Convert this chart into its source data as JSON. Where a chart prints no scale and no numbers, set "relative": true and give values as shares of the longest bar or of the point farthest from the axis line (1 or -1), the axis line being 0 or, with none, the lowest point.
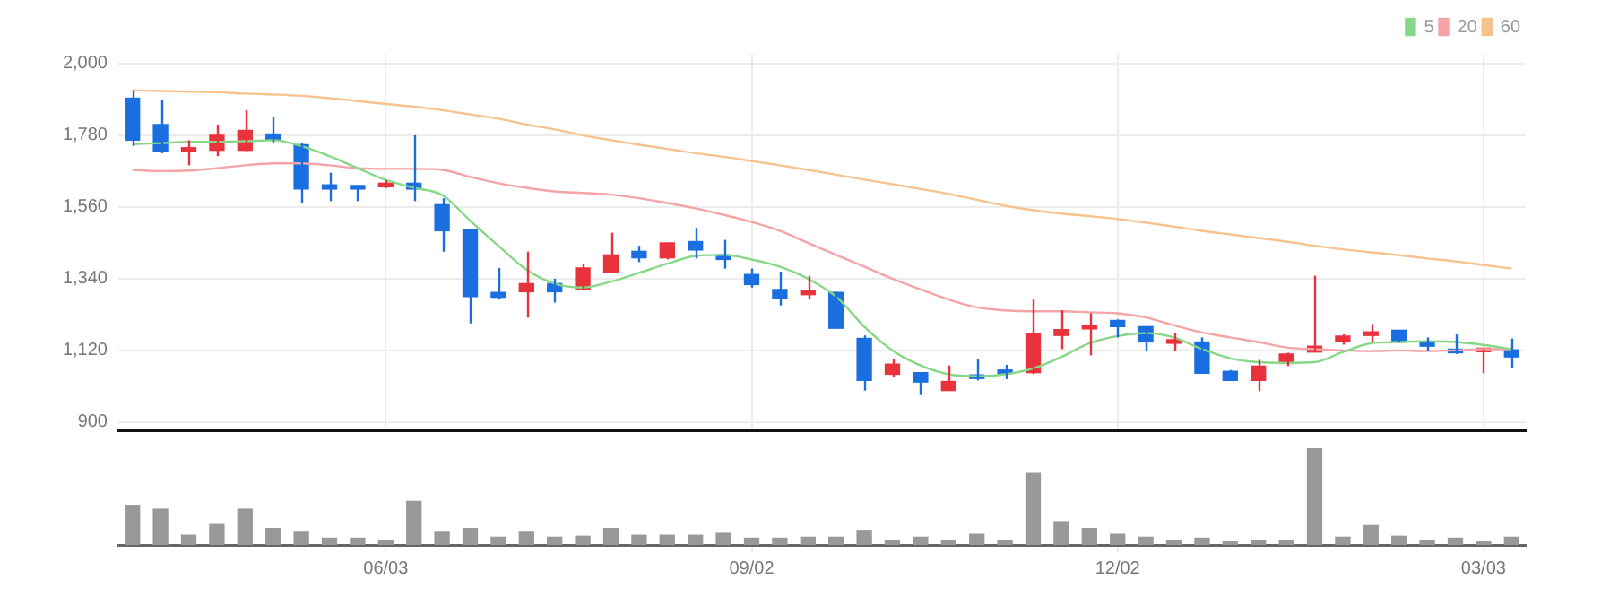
{
  "chart_data": [
    {
      "type": "candlestick",
      "categories": [
        null,
        null,
        null,
        null,
        null,
        null,
        null,
        null,
        null,
        null,
        null,
        null,
        null,
        null,
        null,
        null,
        null,
        null,
        null,
        null,
        null,
        null,
        null,
        null,
        null,
        null,
        null,
        null,
        null,
        null,
        null,
        null,
        null,
        null,
        null,
        null,
        null,
        null,
        null,
        null,
        null,
        null,
        null,
        null,
        null,
        null,
        null,
        null,
        null,
        null
      ],
      "ohlc": [
        [
          1894,
          1918,
          1747,
          1765
        ],
        [
          1813,
          1890,
          1725,
          1731
        ],
        [
          1731,
          1765,
          1688,
          1738
        ],
        [
          1734,
          1813,
          1716,
          1780
        ],
        [
          1734,
          1857,
          1731,
          1795
        ],
        [
          1784,
          1835,
          1756,
          1765
        ],
        [
          1751,
          1758,
          1573,
          1615
        ],
        [
          1628,
          1665,
          1578,
          1615
        ],
        [
          1626,
          1626,
          1578,
          1615
        ],
        [
          1622,
          1642,
          1618,
          1633
        ],
        [
          1633,
          1780,
          1578,
          1615
        ],
        [
          1567,
          1587,
          1423,
          1487
        ],
        [
          1492,
          1492,
          1203,
          1285
        ],
        [
          1298,
          1373,
          1276,
          1283
        ],
        [
          1300,
          1423,
          1221,
          1325
        ],
        [
          1325,
          1340,
          1267,
          1300
        ],
        [
          1307,
          1386,
          1304,
          1373
        ],
        [
          1358,
          1481,
          1358,
          1413
        ],
        [
          1424,
          1441,
          1391,
          1404
        ],
        [
          1404,
          1450,
          1399,
          1450
        ],
        [
          1454,
          1496,
          1402,
          1428
        ],
        [
          1413,
          1459,
          1371,
          1399
        ],
        [
          1353,
          1371,
          1313,
          1322
        ],
        [
          1307,
          1362,
          1258,
          1280
        ],
        [
          1291,
          1349,
          1276,
          1300
        ],
        [
          1298,
          1300,
          1188,
          1188
        ],
        [
          1157,
          1166,
          997,
          1028
        ],
        [
          1047,
          1093,
          1038,
          1078
        ],
        [
          1052,
          1052,
          983,
          1023
        ],
        [
          997,
          1074,
          997,
          1025
        ],
        [
          1043,
          1093,
          1028,
          1034
        ],
        [
          1058,
          1076,
          1032,
          1049
        ],
        [
          1052,
          1276,
          1047,
          1171
        ],
        [
          1166,
          1243,
          1124,
          1184
        ],
        [
          1186,
          1234,
          1105,
          1193
        ],
        [
          1212,
          1215,
          1160,
          1193
        ],
        [
          1193,
          1193,
          1120,
          1146
        ],
        [
          1142,
          1175,
          1120,
          1151
        ],
        [
          1146,
          1160,
          1050,
          1050
        ],
        [
          1056,
          1060,
          1028,
          1028
        ],
        [
          1028,
          1091,
          995,
          1072
        ],
        [
          1080,
          1113,
          1072,
          1109
        ],
        [
          1115,
          1349,
          1115,
          1133
        ],
        [
          1149,
          1169,
          1138,
          1164
        ],
        [
          1166,
          1201,
          1146,
          1175
        ],
        [
          1182,
          1182,
          1146,
          1146
        ],
        [
          1142,
          1160,
          1120,
          1133
        ],
        [
          1124,
          1169,
          1109,
          1113
        ],
        [
          1116,
          1124,
          1050,
          1124
        ],
        [
          1122,
          1157,
          1065,
          1100
        ]
      ],
      "colors": [
        "#1a6fe0",
        "#1a6fe0",
        "#e8323c",
        "#e8323c",
        "#e8323c",
        "#1a6fe0",
        "#1a6fe0",
        "#1a6fe0",
        "#1a6fe0",
        "#e8323c",
        "#1a6fe0",
        "#1a6fe0",
        "#1a6fe0",
        "#1a6fe0",
        "#e8323c",
        "#1a6fe0",
        "#e8323c",
        "#e8323c",
        "#1a6fe0",
        "#e8323c",
        "#1a6fe0",
        "#1a6fe0",
        "#1a6fe0",
        "#1a6fe0",
        "#e8323c",
        "#1a6fe0",
        "#1a6fe0",
        "#e8323c",
        "#1a6fe0",
        "#e8323c",
        "#1a6fe0",
        "#1a6fe0",
        "#e8323c",
        "#e8323c",
        "#e8323c",
        "#1a6fe0",
        "#1a6fe0",
        "#e8323c",
        "#1a6fe0",
        "#1a6fe0",
        "#e8323c",
        "#e8323c",
        "#e8323c",
        "#e8323c",
        "#e8323c",
        "#1a6fe0",
        "#1a6fe0",
        "#1a6fe0",
        "#e8323c",
        "#1a6fe0"
      ],
      "series": [
        {
          "name": "5",
          "type": "line",
          "color": "#86d886",
          "values": [
            1753,
            1756,
            1760,
            1760,
            1762,
            1765,
            1747,
            1716,
            1679,
            1643,
            1619,
            1597,
            1518,
            1441,
            1368,
            1325,
            1313,
            1331,
            1358,
            1386,
            1410,
            1413,
            1399,
            1377,
            1340,
            1285,
            1193,
            1120,
            1074,
            1047,
            1041,
            1047,
            1065,
            1100,
            1142,
            1164,
            1173,
            1160,
            1124,
            1096,
            1084,
            1082,
            1084,
            1115,
            1142,
            1146,
            1148,
            1146,
            1137,
            1124
          ]
        },
        {
          "name": "20",
          "type": "line",
          "color": "#f4a3a6",
          "values": [
            1674,
            1670,
            1672,
            1679,
            1688,
            1694,
            1694,
            1688,
            1679,
            1677,
            1677,
            1674,
            1652,
            1633,
            1619,
            1608,
            1603,
            1598,
            1587,
            1572,
            1556,
            1536,
            1514,
            1487,
            1450,
            1413,
            1377,
            1340,
            1307,
            1276,
            1252,
            1243,
            1240,
            1240,
            1237,
            1234,
            1221,
            1197,
            1175,
            1160,
            1146,
            1129,
            1124,
            1120,
            1118,
            1120,
            1118,
            1120,
            1124,
            1124
          ]
        },
        {
          "name": "60",
          "type": "line",
          "color": "#f7c28c",
          "values": [
            1918,
            1916,
            1914,
            1912,
            1908,
            1905,
            1901,
            1894,
            1885,
            1876,
            1868,
            1857,
            1844,
            1831,
            1813,
            1798,
            1780,
            1765,
            1751,
            1738,
            1725,
            1714,
            1701,
            1688,
            1674,
            1659,
            1644,
            1630,
            1615,
            1600,
            1582,
            1564,
            1550,
            1540,
            1532,
            1523,
            1512,
            1500,
            1487,
            1476,
            1465,
            1454,
            1441,
            1430,
            1421,
            1412,
            1402,
            1393,
            1382,
            1371
          ]
        }
      ],
      "ylim": [
        875,
        2030
      ],
      "yticks": [
        900,
        {
          "value": 1120,
          "label": "1,120"
        },
        {
          "value": 1340,
          "label": "1,340"
        },
        {
          "value": 1560,
          "label": "1,560"
        },
        {
          "value": 1780,
          "label": "1,780"
        },
        {
          "value": 2000,
          "label": "2,000"
        }
      ],
      "grid": true,
      "legend": "top right",
      "tick_labels": "y"
    },
    {
      "type": "bar",
      "relative": true,
      "categories": [
        null,
        null,
        null,
        null,
        null,
        null,
        null,
        null,
        null,
        "06/03",
        null,
        null,
        null,
        null,
        null,
        null,
        null,
        null,
        null,
        null,
        null,
        null,
        "09/02",
        null,
        null,
        null,
        null,
        null,
        null,
        null,
        null,
        null,
        null,
        null,
        null,
        "12/02",
        null,
        null,
        null,
        null,
        null,
        null,
        null,
        null,
        null,
        null,
        null,
        null,
        "03/03",
        null
      ],
      "values": [
        0.41,
        0.37,
        0.1,
        0.22,
        0.37,
        0.17,
        0.14,
        0.07,
        0.07,
        0.05,
        0.45,
        0.14,
        0.17,
        0.08,
        0.14,
        0.08,
        0.09,
        0.17,
        0.1,
        0.1,
        0.1,
        0.12,
        0.07,
        0.07,
        0.08,
        0.08,
        0.15,
        0.05,
        0.08,
        0.05,
        0.11,
        0.05,
        0.74,
        0.24,
        0.17,
        0.11,
        0.08,
        0.05,
        0.07,
        0.04,
        0.05,
        0.05,
        1,
        0.08,
        0.2,
        0.09,
        0.05,
        0.07,
        0.04,
        0.08
      ],
      "color": "#999999",
      "tick_labels": "x"
    }
  ]
}
